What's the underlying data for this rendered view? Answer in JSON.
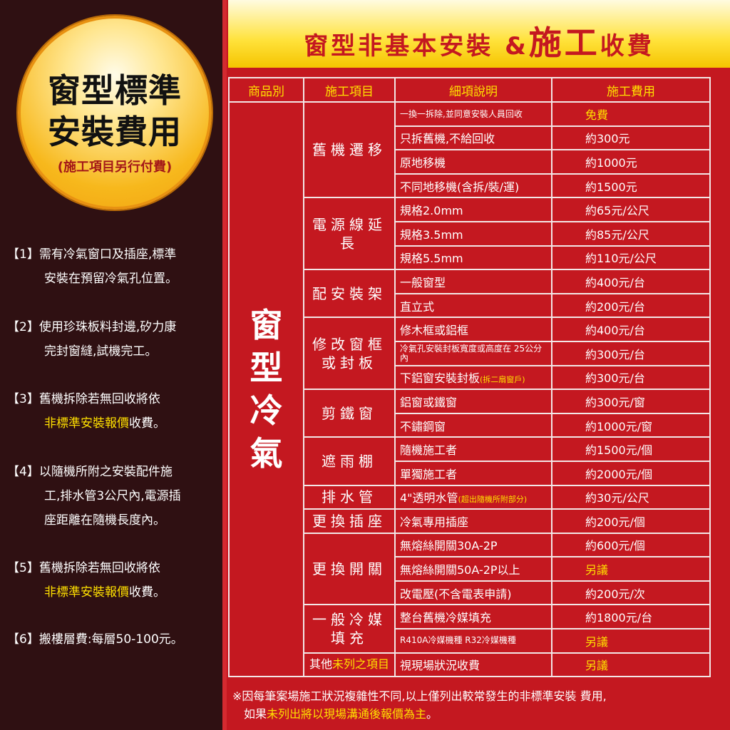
{
  "badge": {
    "line1": "窗型標準",
    "line2": "安裝費用",
    "sub": "(施工項目另行付費)"
  },
  "notes": [
    {
      "num": "【1】",
      "lines": [
        {
          "text": "需有冷氣窗口及插座,標準"
        },
        {
          "text": "安裝在預留冷氣孔位置。"
        }
      ]
    },
    {
      "num": "【2】",
      "lines": [
        {
          "text": "使用珍珠板料封邊,矽力康"
        },
        {
          "text": "完封窗縫,試機完工。"
        }
      ]
    },
    {
      "num": "【3】",
      "lines": [
        {
          "text": "舊機拆除若無回收將依"
        },
        {
          "hl": "非標準安裝報價",
          "text": "收費。"
        }
      ]
    },
    {
      "num": "【4】",
      "lines": [
        {
          "text": "以隨機所附之安裝配件施"
        },
        {
          "text": "工,排水管3公尺內,電源插"
        },
        {
          "text": "座距離在隨機長度內。"
        }
      ]
    },
    {
      "num": "【5】",
      "lines": [
        {
          "text": "舊機拆除若無回收將依"
        },
        {
          "hl": "非標準安裝報價",
          "text": "收費。"
        }
      ]
    },
    {
      "num": "【6】",
      "lines": [
        {
          "text": "搬樓層費:每層50-100元。"
        }
      ]
    }
  ],
  "banner": {
    "title_a": "窗型非基本安裝",
    "amp": "&",
    "title_b": "施工",
    "title_c": "收費"
  },
  "table": {
    "headers": [
      "商品別",
      "施工項目",
      "細項說明",
      "施工費用"
    ],
    "product": "窗型冷氣",
    "groups": [
      {
        "name": "舊機遷移",
        "rows": [
          [
            "一換一拆除,並同意安裝人員回收",
            "免費",
            1
          ],
          [
            "只拆舊機,不給回收",
            "約300元"
          ],
          [
            "原地移機",
            "約1000元"
          ],
          [
            "不同地移機(含拆/裝/運)",
            "約1500元"
          ]
        ]
      },
      {
        "name": "電源線延長",
        "rows": [
          [
            "規格2.0mm",
            "約65元/公尺"
          ],
          [
            "規格3.5mm",
            "約85元/公尺"
          ],
          [
            "規格5.5mm",
            "約110元/公尺"
          ]
        ]
      },
      {
        "name": "配安裝架",
        "rows": [
          [
            "一般窗型",
            "約400元/台"
          ],
          [
            "直立式",
            "約200元/台"
          ]
        ]
      },
      {
        "name": "修改窗框或封板",
        "rows": [
          [
            "修木框或鋁框",
            "約400元/台"
          ],
          [
            "冷氣孔安裝封板寬度或高度在 25公分內",
            "約300元/台",
            0,
            1
          ],
          [
            "下鋁窗安裝封板",
            "約300元/台",
            0,
            0,
            "(拆二扇窗戶)"
          ]
        ]
      },
      {
        "name": "剪鐵窗",
        "rows": [
          [
            "鋁窗或鐵窗",
            "約300元/窗"
          ],
          [
            "不鏽鋼窗",
            "約1000元/窗"
          ]
        ]
      },
      {
        "name": "遮雨棚",
        "rows": [
          [
            "隨機施工者",
            "約1500元/個"
          ],
          [
            "單獨施工者",
            "約2000元/個"
          ]
        ]
      },
      {
        "name": "排水管",
        "rows": [
          [
            "4\"透明水管",
            "約30元/公尺",
            0,
            0,
            "(超出隨機所附部分)"
          ]
        ]
      },
      {
        "name": "更換插座",
        "rows": [
          [
            "冷氣專用插座",
            "約200元/個"
          ]
        ]
      },
      {
        "name": "更換開關",
        "rows": [
          [
            "無熔絲開關30A-2P",
            "約600元/個"
          ],
          [
            "無熔絲開關50A-2P以上",
            "另議",
            1
          ],
          [
            "改電壓(不含電表申請)",
            "約200元/次"
          ]
        ]
      },
      {
        "name": "一般冷媒填充",
        "rows": [
          [
            "整台舊機冷媒填充",
            "約1800元/台"
          ],
          [
            "R410A冷媒機種 R32冷媒機種",
            "另議",
            1,
            1
          ]
        ]
      },
      {
        "name": "其他",
        "name_hl": "未列之項目",
        "rows": [
          [
            "視現場狀況收費",
            "另議",
            1
          ]
        ]
      }
    ]
  },
  "footer": {
    "line1": "※因每筆案場施工狀況複雜性不同,以上僅列出較常發生的非標準安裝 費用,",
    "line2_a": "如果",
    "line2_hl": "未列出將以現場溝通後報價為主",
    "line2_b": "。"
  },
  "colors": {
    "red": "#c41820",
    "dark": "#2f1012",
    "yellow": "#ffe000",
    "gold": "#f7b81c"
  }
}
